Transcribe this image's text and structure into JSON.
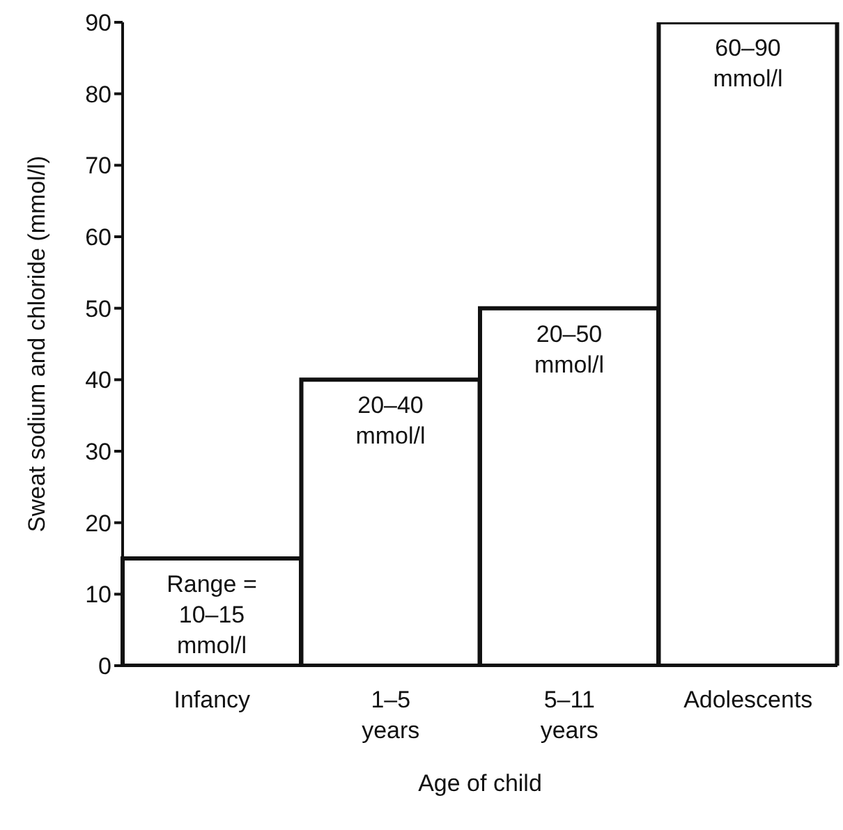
{
  "chart_data": {
    "type": "bar",
    "categories": [
      "Infancy",
      "1–5\nyears",
      "5–11\nyears",
      "Adolescents"
    ],
    "values": [
      15,
      40,
      50,
      90
    ],
    "value_labels": [
      "Range =\n10–15\nmmol/l",
      "20–40\nmmol/l",
      "20–50\nmmol/l",
      "60–90\nmmol/l"
    ],
    "color": "#ffffff",
    "xlabel": "Age of child",
    "ylabel": "Sweat sodium and chloride (mmol/l)",
    "ylim": [
      0,
      90
    ],
    "yticks": [
      0,
      10,
      20,
      30,
      40,
      50,
      60,
      70,
      80,
      90
    ],
    "grid": false
  }
}
